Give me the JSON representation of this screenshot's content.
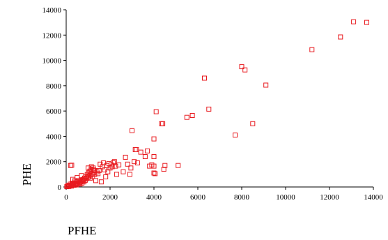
{
  "chart_data": {
    "type": "scatter",
    "xlabel": "PFHE",
    "ylabel": "PHE",
    "xlim": [
      0,
      14000
    ],
    "ylim": [
      0,
      14000
    ],
    "x_ticks": [
      "0",
      "2000",
      "4000",
      "6000",
      "8000",
      "10000",
      "12000",
      "14000"
    ],
    "y_ticks": [
      "0",
      "2000",
      "4000",
      "6000",
      "8000",
      "10000",
      "12000",
      "14000"
    ],
    "grid": false,
    "legend": "none",
    "marker": "hollow-square",
    "marker_color": "#e8191e",
    "series": [
      {
        "points": [
          [
            30,
            20
          ],
          [
            60,
            60
          ],
          [
            90,
            130
          ],
          [
            120,
            40
          ],
          [
            150,
            90
          ],
          [
            180,
            220
          ],
          [
            210,
            120
          ],
          [
            240,
            70
          ],
          [
            270,
            300
          ],
          [
            300,
            180
          ],
          [
            330,
            250
          ],
          [
            360,
            140
          ],
          [
            390,
            380
          ],
          [
            420,
            220
          ],
          [
            450,
            300
          ],
          [
            480,
            160
          ],
          [
            510,
            420
          ],
          [
            540,
            280
          ],
          [
            570,
            500
          ],
          [
            600,
            350
          ],
          [
            630,
            230
          ],
          [
            660,
            420
          ],
          [
            690,
            550
          ],
          [
            720,
            310
          ],
          [
            750,
            480
          ],
          [
            780,
            600
          ],
          [
            810,
            400
          ],
          [
            840,
            700
          ],
          [
            870,
            530
          ],
          [
            900,
            820
          ],
          [
            930,
            660
          ],
          [
            960,
            980
          ],
          [
            990,
            760
          ],
          [
            1020,
            1100
          ],
          [
            1050,
            880
          ],
          [
            1080,
            1250
          ],
          [
            1110,
            950
          ],
          [
            1140,
            1400
          ],
          [
            1170,
            1050
          ],
          [
            1200,
            820
          ],
          [
            1230,
            1500
          ],
          [
            1260,
            1150
          ],
          [
            1290,
            1300
          ],
          [
            200,
            1700
          ],
          [
            250,
            1720
          ],
          [
            300,
            600
          ],
          [
            400,
            500
          ],
          [
            500,
            750
          ],
          [
            700,
            900
          ],
          [
            800,
            500
          ],
          [
            1000,
            1500
          ],
          [
            1100,
            700
          ],
          [
            1150,
            1600
          ],
          [
            1250,
            1350
          ],
          [
            1300,
            1000
          ],
          [
            1350,
            500
          ],
          [
            1400,
            1200
          ],
          [
            1450,
            1050
          ],
          [
            1500,
            1300
          ],
          [
            1550,
            1800
          ],
          [
            1600,
            400
          ],
          [
            1650,
            1600
          ],
          [
            1700,
            1900
          ],
          [
            1750,
            1350
          ],
          [
            1800,
            800
          ],
          [
            1850,
            1700
          ],
          [
            1900,
            1200
          ],
          [
            1950,
            1850
          ],
          [
            2000,
            1500
          ],
          [
            2050,
            1750
          ],
          [
            2100,
            1600
          ],
          [
            2150,
            1900
          ],
          [
            2200,
            2000
          ],
          [
            2250,
            1650
          ],
          [
            2300,
            1000
          ],
          [
            2400,
            1750
          ],
          [
            2600,
            1200
          ],
          [
            2700,
            2350
          ],
          [
            2800,
            1800
          ],
          [
            2900,
            1000
          ],
          [
            2950,
            1500
          ],
          [
            3000,
            4450
          ],
          [
            3100,
            2000
          ],
          [
            3150,
            2950
          ],
          [
            3200,
            2950
          ],
          [
            3250,
            1900
          ],
          [
            3400,
            2750
          ],
          [
            3600,
            2400
          ],
          [
            3700,
            2850
          ],
          [
            3800,
            1650
          ],
          [
            3900,
            1750
          ],
          [
            4000,
            3800
          ],
          [
            4000,
            2400
          ],
          [
            4000,
            1650
          ],
          [
            4000,
            1100
          ],
          [
            4050,
            1050
          ],
          [
            4100,
            5950
          ],
          [
            4350,
            5000
          ],
          [
            4400,
            5000
          ],
          [
            4450,
            1400
          ],
          [
            4500,
            1700
          ],
          [
            5100,
            1700
          ],
          [
            5500,
            5500
          ],
          [
            5750,
            5650
          ],
          [
            6300,
            8600
          ],
          [
            6500,
            6150
          ],
          [
            7700,
            4100
          ],
          [
            8000,
            9500
          ],
          [
            8150,
            9250
          ],
          [
            8500,
            5000
          ],
          [
            9100,
            8050
          ],
          [
            11200,
            10850
          ],
          [
            12500,
            11850
          ],
          [
            13100,
            13050
          ],
          [
            13700,
            13000
          ]
        ]
      }
    ]
  }
}
